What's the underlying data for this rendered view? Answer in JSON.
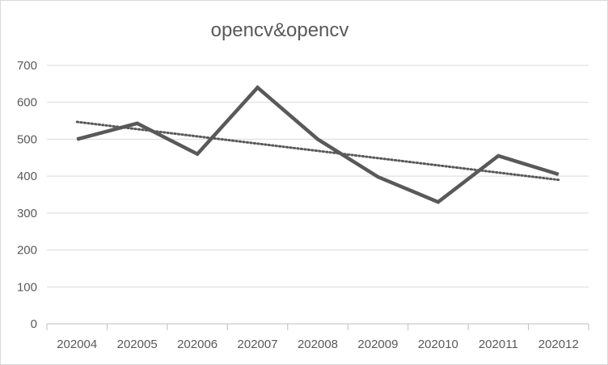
{
  "chart_data": {
    "type": "line",
    "title": "opencv&opencv",
    "xlabel": "",
    "ylabel": "",
    "categories": [
      "202004",
      "202005",
      "202006",
      "202007",
      "202008",
      "202009",
      "202010",
      "202011",
      "202012"
    ],
    "series": [
      {
        "values": [
          500,
          543,
          460,
          640,
          500,
          398,
          330,
          455,
          405
        ]
      }
    ],
    "trendline": {
      "type": "linear",
      "style": "dotted",
      "start": 547,
      "end": 390
    },
    "ylim": [
      0,
      700
    ],
    "yticks": [
      0,
      100,
      200,
      300,
      400,
      500,
      600,
      700
    ],
    "grid": true,
    "legend": "none",
    "colors": {
      "series": "#595959",
      "trendline": "#595959",
      "grid": "#d9d9d9",
      "axis": "#bfbfbf",
      "text": "#595959"
    }
  }
}
